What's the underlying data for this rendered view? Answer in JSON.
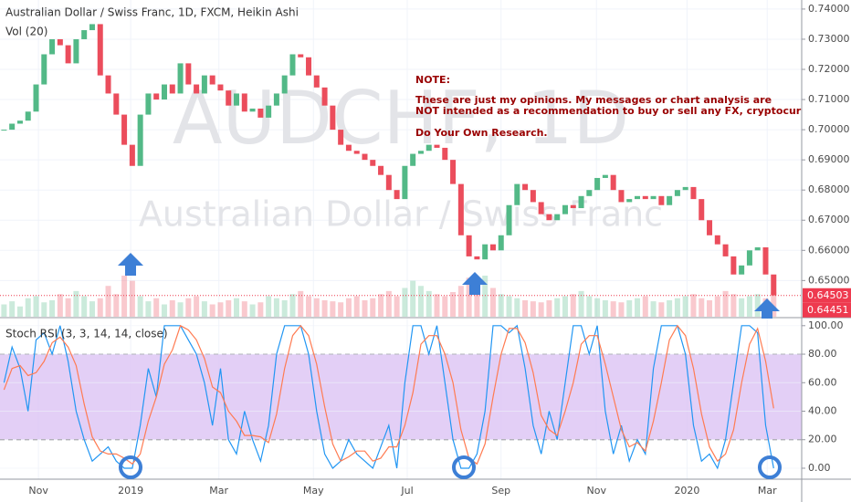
{
  "chart_data": [
    {
      "type": "candlestick",
      "title": "Australian Dollar / Swiss Franc, 1D, FXCM, Heikin Ashi",
      "subtitle": "Vol (20)",
      "watermark": [
        "AUDCHF, 1D",
        "Australian Dollar / Swiss Franc"
      ],
      "up_color": "#53b987",
      "down_color": "#eb4d5c",
      "close": [
        0.7,
        0.702,
        0.703,
        0.706,
        0.715,
        0.725,
        0.73,
        0.728,
        0.722,
        0.73,
        0.733,
        0.735,
        0.718,
        0.712,
        0.705,
        0.695,
        0.688,
        0.705,
        0.712,
        0.71,
        0.715,
        0.712,
        0.722,
        0.715,
        0.712,
        0.718,
        0.715,
        0.713,
        0.708,
        0.712,
        0.706,
        0.707,
        0.704,
        0.708,
        0.712,
        0.718,
        0.725,
        0.724,
        0.718,
        0.714,
        0.708,
        0.7,
        0.695,
        0.693,
        0.692,
        0.69,
        0.688,
        0.685,
        0.68,
        0.677,
        0.688,
        0.692,
        0.693,
        0.695,
        0.694,
        0.69,
        0.682,
        0.665,
        0.658,
        0.657,
        0.662,
        0.66,
        0.665,
        0.675,
        0.682,
        0.68,
        0.676,
        0.672,
        0.67,
        0.672,
        0.675,
        0.674,
        0.678,
        0.68,
        0.684,
        0.685,
        0.68,
        0.676,
        0.677,
        0.678,
        0.677,
        0.678,
        0.675,
        0.678,
        0.68,
        0.681,
        0.677,
        0.67,
        0.665,
        0.662,
        0.658,
        0.652,
        0.655,
        0.66,
        0.661,
        0.652,
        0.6451
      ],
      "volume": [
        12,
        15,
        10,
        18,
        20,
        14,
        16,
        22,
        18,
        25,
        20,
        15,
        18,
        30,
        22,
        40,
        35,
        20,
        15,
        18,
        12,
        16,
        14,
        18,
        20,
        15,
        12,
        14,
        16,
        18,
        15,
        12,
        14,
        20,
        18,
        16,
        22,
        25,
        20,
        18,
        16,
        15,
        14,
        18,
        20,
        16,
        18,
        22,
        25,
        20,
        28,
        35,
        30,
        25,
        22,
        20,
        24,
        30,
        38,
        34,
        40,
        28,
        22,
        20,
        18,
        16,
        15,
        14,
        16,
        18,
        20,
        22,
        25,
        20,
        18,
        16,
        15,
        14,
        16,
        18,
        20,
        15,
        14,
        16,
        18,
        20,
        22,
        18,
        16,
        20,
        25,
        22,
        18,
        20,
        22,
        18,
        24
      ],
      "ylim": [
        0.638,
        0.743
      ],
      "yticks": [
        {
          "value": 0.74,
          "label": "0.74000"
        },
        {
          "value": 0.73,
          "label": "0.73000"
        },
        {
          "value": 0.72,
          "label": "0.72000"
        },
        {
          "value": 0.71,
          "label": "0.71000"
        },
        {
          "value": 0.7,
          "label": "0.70000"
        },
        {
          "value": 0.69,
          "label": "0.69000"
        },
        {
          "value": 0.68,
          "label": "0.68000"
        },
        {
          "value": 0.67,
          "label": "0.67000"
        },
        {
          "value": 0.66,
          "label": "0.66000"
        },
        {
          "value": 0.65,
          "label": "0.65000"
        }
      ],
      "price_lines": [
        {
          "value": 0.64503,
          "label": "0.64503"
        },
        {
          "value": 0.64451,
          "label": "0.64451"
        }
      ],
      "price_line_color": "#ee3a4f",
      "xlim": [
        -0.5,
        99.5
      ],
      "xticks": [
        {
          "value": 4.3,
          "label": "Nov"
        },
        {
          "value": 15.8,
          "label": "2019"
        },
        {
          "value": 26.8,
          "label": "Mar"
        },
        {
          "value": 38.6,
          "label": "May"
        },
        {
          "value": 50.3,
          "label": "Jul"
        },
        {
          "value": 62,
          "label": "Sep"
        },
        {
          "value": 73.9,
          "label": "Nov"
        },
        {
          "value": 85.2,
          "label": "2020"
        },
        {
          "value": 95.2,
          "label": "Mar"
        }
      ],
      "grid": true
    },
    {
      "type": "line",
      "title": "Stoch RSI (3, 3, 14, 14, close)",
      "series": [
        {
          "color": "#2196f3",
          "values": [
            60,
            85,
            70,
            40,
            90,
            95,
            80,
            100,
            75,
            40,
            20,
            5,
            10,
            15,
            5,
            0,
            0,
            30,
            70,
            50,
            100,
            100,
            100,
            90,
            80,
            60,
            30,
            70,
            20,
            10,
            40,
            20,
            5,
            30,
            80,
            100,
            100,
            100,
            80,
            40,
            10,
            0,
            5,
            20,
            10,
            5,
            0,
            15,
            30,
            0,
            60,
            100,
            100,
            80,
            100,
            60,
            20,
            0,
            0,
            10,
            40,
            100,
            100,
            95,
            100,
            70,
            30,
            10,
            40,
            20,
            60,
            100,
            100,
            80,
            100,
            40,
            10,
            30,
            5,
            20,
            10,
            70,
            100,
            100,
            100,
            80,
            30,
            5,
            10,
            0,
            20,
            60,
            100,
            100,
            95,
            30,
            0
          ]
        },
        {
          "color": "#ff7b52",
          "values": [
            55,
            70,
            72,
            65,
            67,
            75,
            88,
            92,
            85,
            72,
            45,
            22,
            12,
            10,
            10,
            7,
            3,
            10,
            33,
            50,
            73,
            83,
            100,
            97,
            90,
            77,
            57,
            53,
            40,
            33,
            23,
            23,
            22,
            18,
            38,
            70,
            93,
            100,
            93,
            73,
            43,
            17,
            5,
            8,
            12,
            12,
            5,
            7,
            15,
            15,
            30,
            53,
            87,
            93,
            93,
            80,
            60,
            27,
            7,
            3,
            17,
            50,
            80,
            98,
            98,
            88,
            67,
            37,
            27,
            23,
            40,
            60,
            87,
            93,
            93,
            73,
            50,
            27,
            15,
            18,
            12,
            33,
            60,
            90,
            100,
            93,
            70,
            38,
            15,
            5,
            10,
            27,
            60,
            87,
            98,
            75,
            42
          ]
        }
      ],
      "bands": [
        20,
        80
      ],
      "band_color": "#dcc3f4",
      "ylim": [
        -7.7,
        105
      ],
      "yticks": [
        {
          "value": 100,
          "label": "100.00"
        },
        {
          "value": 80,
          "label": "80.00"
        },
        {
          "value": 60,
          "label": "60.00"
        },
        {
          "value": 40,
          "label": "40.00"
        },
        {
          "value": 20,
          "label": "20.00"
        },
        {
          "value": 0,
          "label": "0.00"
        }
      ],
      "grid": true
    }
  ],
  "note": [
    "NOTE:",
    "These are just my opinions. My messages or chart analysis are",
    "NOT intended as a recommendation to buy or sell any FX, cryptocurrency or a",
    "Do Your Own Research."
  ]
}
